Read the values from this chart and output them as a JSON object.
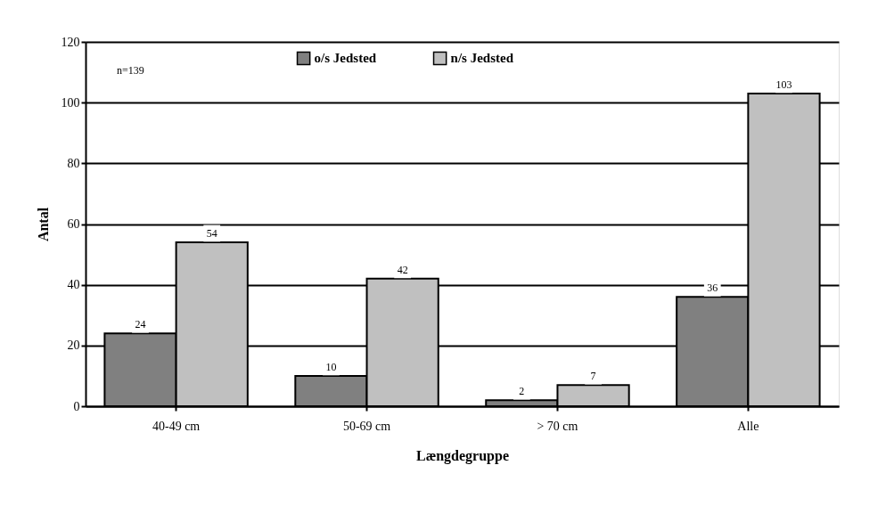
{
  "chart_data": {
    "type": "bar",
    "xlabel": "Længdegruppe",
    "ylabel": "Antal",
    "categories": [
      "40-49 cm",
      "50-69 cm",
      "> 70 cm",
      "Alle"
    ],
    "series": [
      {
        "name": "o/s Jedsted",
        "color": "#808080",
        "values": [
          24,
          10,
          2,
          36
        ]
      },
      {
        "name": "n/s Jedsted",
        "color": "#c0c0c0",
        "values": [
          54,
          42,
          7,
          103
        ]
      }
    ],
    "ylim": [
      0,
      120
    ],
    "yticks": [
      0,
      20,
      40,
      60,
      80,
      100,
      120
    ],
    "grid": "y",
    "legend": "top",
    "data_labels": true,
    "annotations": [
      "n=139"
    ]
  }
}
